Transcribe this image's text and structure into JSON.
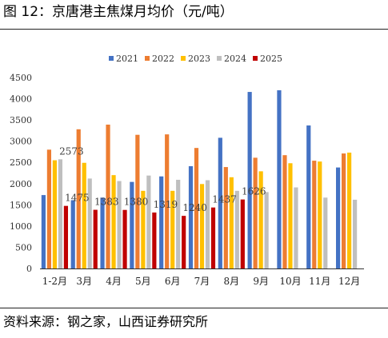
{
  "figure": {
    "title": "图 12：京唐港主焦煤月均价（元/吨）",
    "source": "资料来源：钢之家，山西证券研究所"
  },
  "colors": {
    "2021": "#4472c4",
    "2022": "#ed7d31",
    "2023": "#ffc000",
    "2024": "#bfbfbf",
    "2025": "#c00000"
  },
  "chart_data": {
    "type": "bar",
    "title": "",
    "xlabel": "",
    "ylabel": "",
    "ylim": [
      0,
      4500
    ],
    "yticks": [
      0,
      500,
      1000,
      1500,
      2000,
      2500,
      3000,
      3500,
      4000,
      4500
    ],
    "grid": false,
    "legend_position": "top",
    "categories": [
      "1-2月",
      "3月",
      "4月",
      "5月",
      "6月",
      "7月",
      "8月",
      "9月",
      "10月",
      "11月",
      "12月"
    ],
    "series": [
      {
        "name": "2021",
        "values": [
          1730,
          1610,
          1670,
          2040,
          2170,
          2410,
          3080,
          4160,
          4200,
          3370,
          2380
        ]
      },
      {
        "name": "2022",
        "values": [
          2800,
          3280,
          3390,
          3150,
          3160,
          2840,
          2390,
          2610,
          2670,
          2540,
          2710
        ]
      },
      {
        "name": "2023",
        "values": [
          2550,
          2490,
          2200,
          1830,
          1830,
          1990,
          2150,
          2290,
          2480,
          2520,
          2730
        ]
      },
      {
        "name": "2024",
        "values": [
          2573,
          2120,
          2060,
          2190,
          2090,
          2080,
          1830,
          1800,
          1910,
          1670,
          1620
        ]
      },
      {
        "name": "2025",
        "values": [
          1475,
          1383,
          1380,
          1319,
          1240,
          1437,
          1626,
          null,
          null,
          null,
          null
        ]
      }
    ],
    "data_labels": [
      {
        "series": "2024",
        "category": "1-2月",
        "text": "2573"
      },
      {
        "series": "2025",
        "category": "1-2月",
        "text": "1475"
      },
      {
        "series": "2025",
        "category": "3月",
        "text": "1383"
      },
      {
        "series": "2025",
        "category": "4月",
        "text": "1380"
      },
      {
        "series": "2025",
        "category": "5月",
        "text": "1319"
      },
      {
        "series": "2025",
        "category": "6月",
        "text": "1240"
      },
      {
        "series": "2025",
        "category": "7月",
        "text": "1437"
      },
      {
        "series": "2025",
        "category": "8月",
        "text": "1626"
      }
    ]
  }
}
